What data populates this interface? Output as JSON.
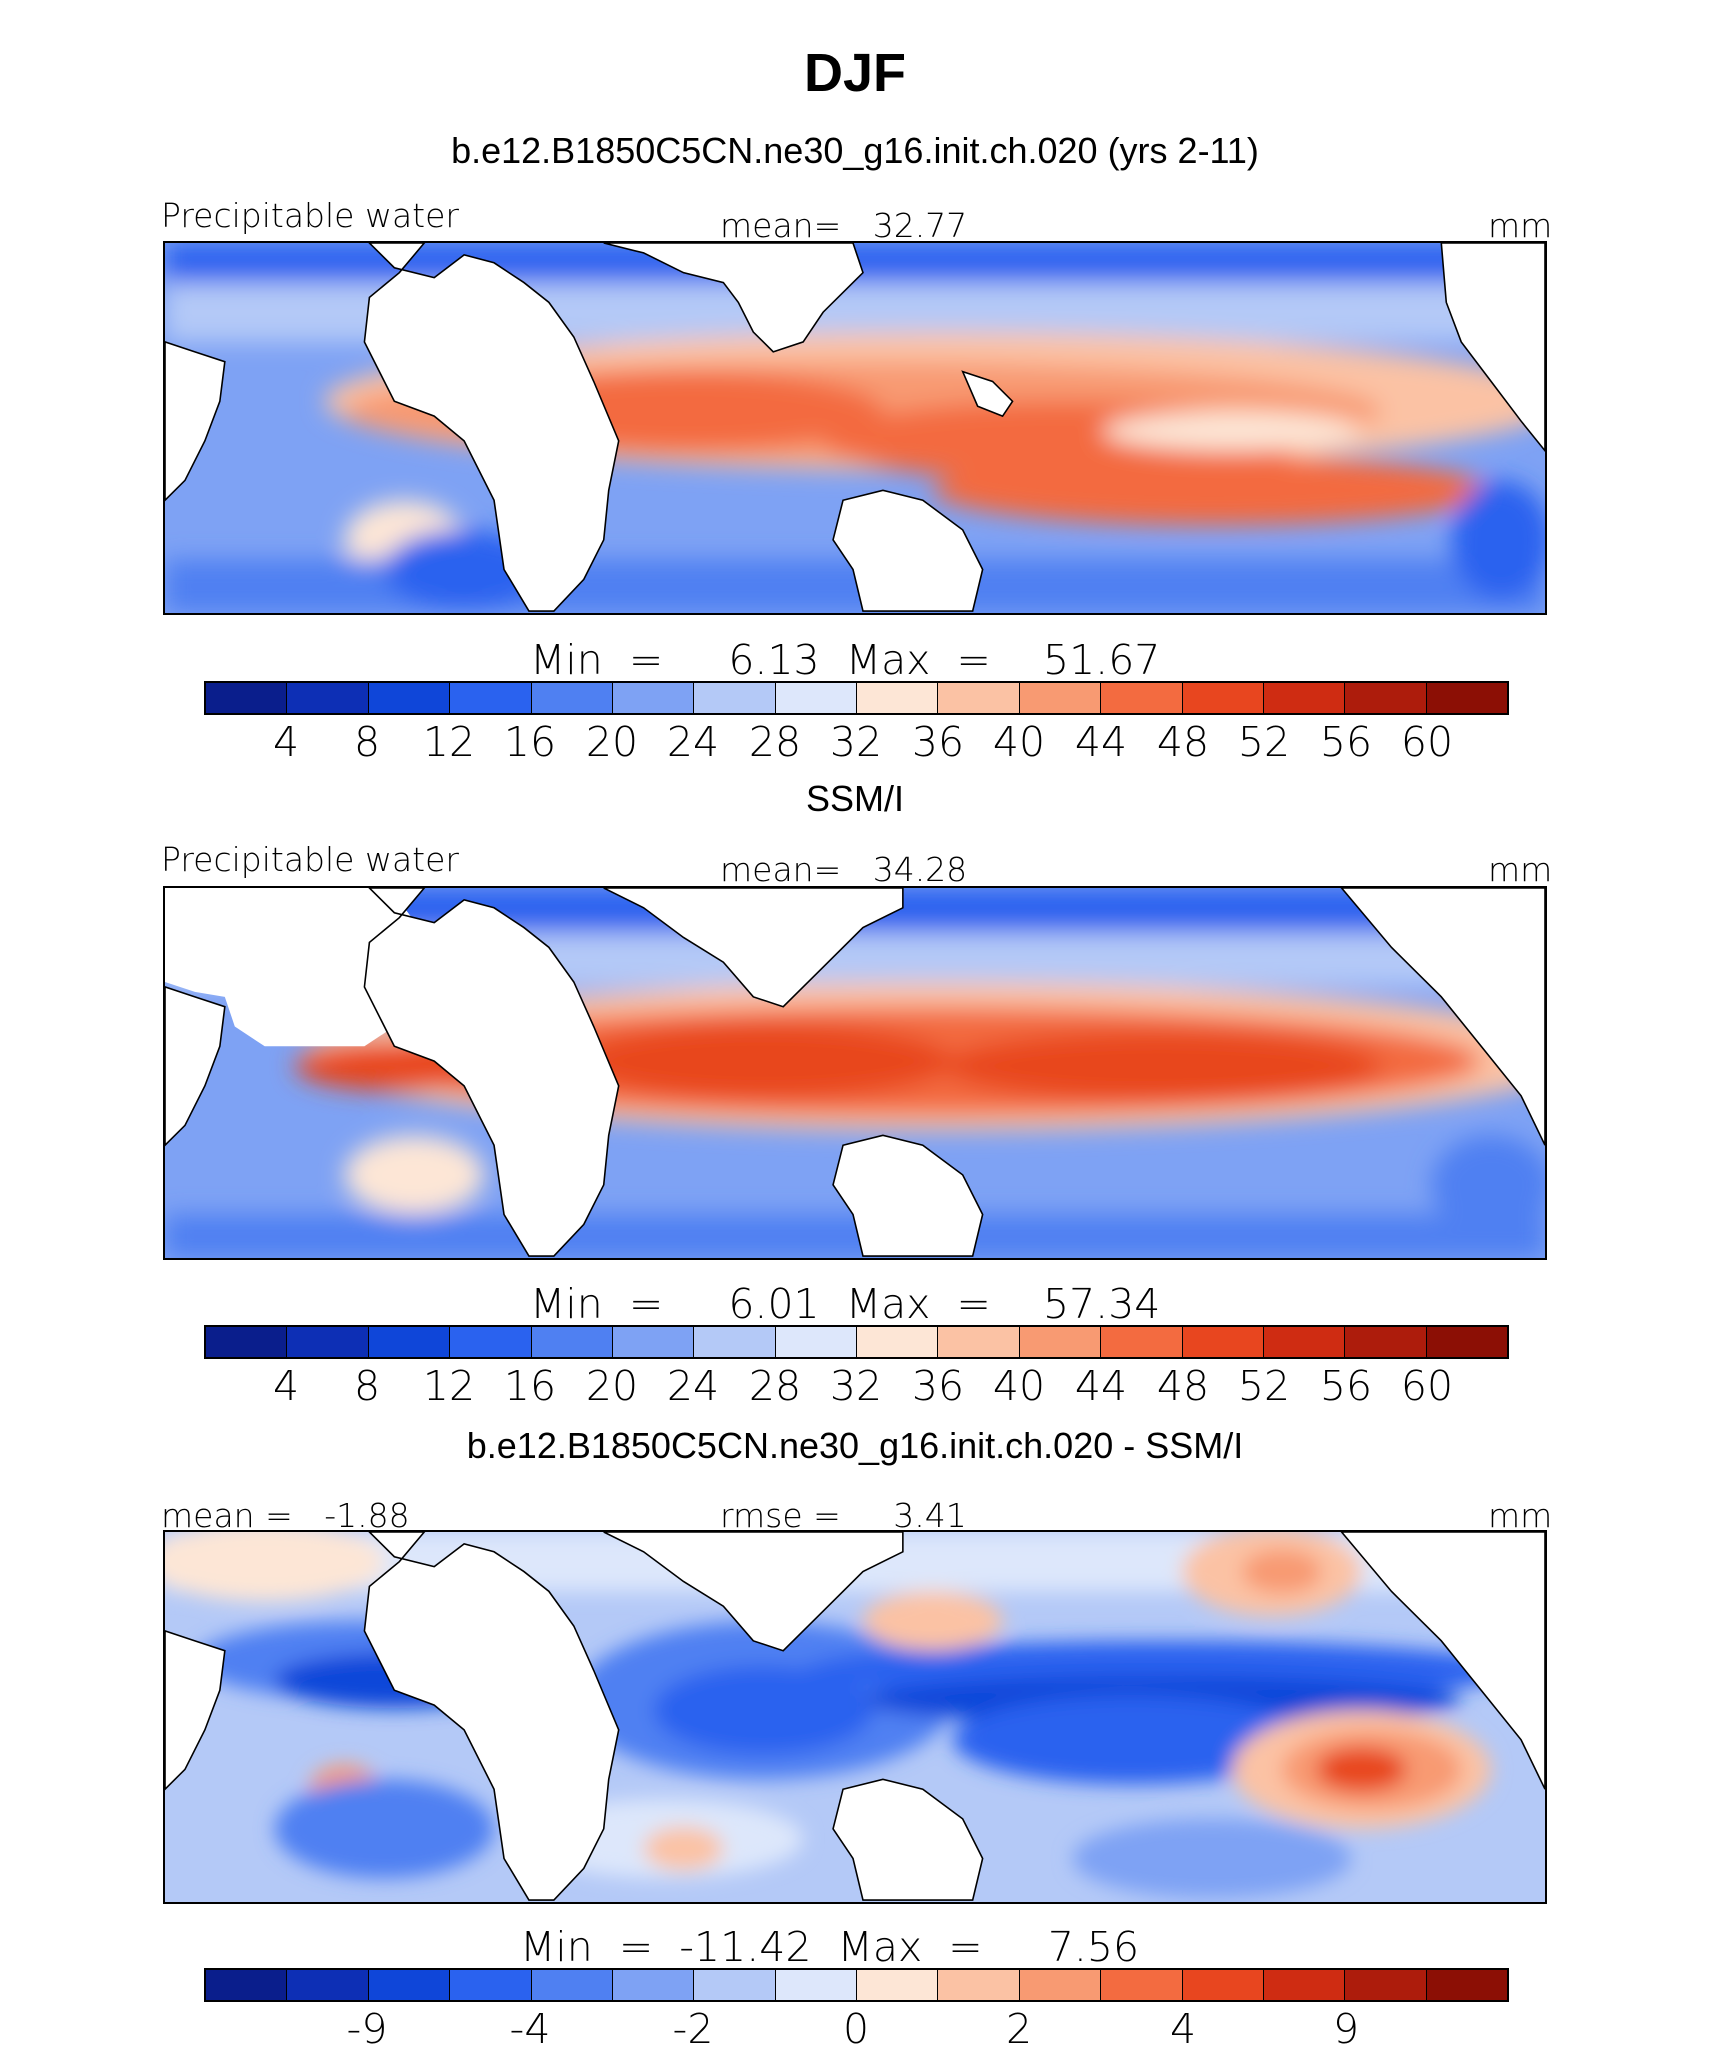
{
  "figure": {
    "title": "DJF"
  },
  "palette": [
    "#0a1e8c",
    "#0d2fb5",
    "#0f46d9",
    "#2a62ef",
    "#4f80f2",
    "#7ea2f4",
    "#b4c9f7",
    "#dde7fb",
    "#fde6d6",
    "#fbc2a4",
    "#f89a72",
    "#f36b40",
    "#e8461f",
    "#cf2c12",
    "#ad1c0c",
    "#8c0f05"
  ],
  "panels": [
    {
      "subtitle": "b.e12.B1850C5CN.ne30_g16.init.ch.020 (yrs 2-11)",
      "left_label": "Precipitable water",
      "center_label": "mean=   32.77",
      "units": "mm",
      "stats": "Min  =     6.13  Max  =    51.67",
      "colorbar_ticks": [
        "4",
        "8",
        "12",
        "16",
        "20",
        "24",
        "28",
        "32",
        "36",
        "40",
        "44",
        "48",
        "52",
        "56",
        "60"
      ],
      "map": {
        "variable": "precipitable water",
        "season": "DJF",
        "dataset": "model"
      }
    },
    {
      "subtitle": "SSM/I",
      "left_label": "Precipitable water",
      "center_label": "mean=   34.28",
      "units": "mm",
      "stats": "Min  =     6.01  Max  =    57.34",
      "colorbar_ticks": [
        "4",
        "8",
        "12",
        "16",
        "20",
        "24",
        "28",
        "32",
        "36",
        "40",
        "44",
        "48",
        "52",
        "56",
        "60"
      ],
      "map": {
        "variable": "precipitable water",
        "season": "DJF",
        "dataset": "observations"
      }
    },
    {
      "subtitle": "b.e12.B1850C5CN.ne30_g16.init.ch.020 - SSM/I",
      "left_label": "mean =   -1.88",
      "center_label": "rmse =     3.41",
      "units": "mm",
      "stats": "Min  =  -11.42  Max  =     7.56",
      "colorbar_ticks": [
        "-9",
        "-4",
        "-2",
        "0",
        "2",
        "4",
        "9"
      ],
      "map": {
        "variable": "precipitable water difference",
        "season": "DJF",
        "dataset": "model minus observations"
      }
    }
  ]
}
